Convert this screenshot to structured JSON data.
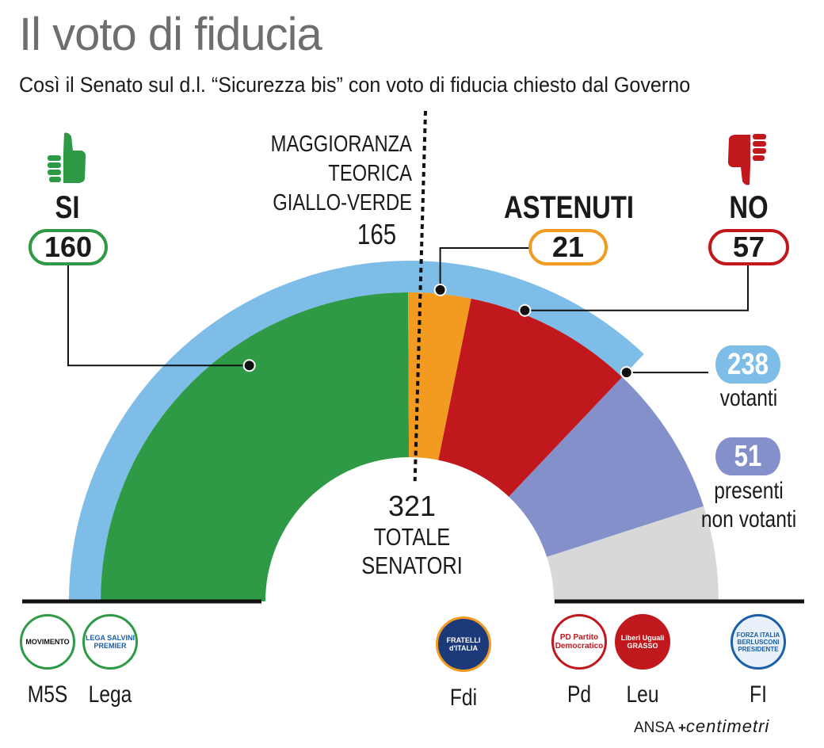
{
  "header": {
    "title": "Il voto di fiducia",
    "subtitle": "Così il Senato sul d.l. “Sicurezza bis” con voto di fiducia chiesto dal Governo"
  },
  "labels": {
    "si": "SI",
    "astenuti": "ASTENUTI",
    "no": "NO",
    "maj_line1": "MAGGIORANZA",
    "maj_line2": "TEORICA",
    "maj_line3": "GIALLO-VERDE",
    "maj_value": "165",
    "total_value": "321",
    "total_line1": "TOTALE",
    "total_line2": "SENATORI",
    "votanti_value": "238",
    "votanti_label": "votanti",
    "presenti_value": "51",
    "presenti_line1": "presenti",
    "presenti_line2": "non votanti"
  },
  "values": {
    "si": "160",
    "astenuti": "21",
    "no": "57"
  },
  "parties": [
    {
      "name": "M5S",
      "logo_text": "MOVIMENTO"
    },
    {
      "name": "Lega",
      "logo_text": "LEGA SALVINI PREMIER"
    },
    {
      "name": "Fdi",
      "logo_text": "FRATELLI d'ITALIA"
    },
    {
      "name": "Pd",
      "logo_text": "PD Partito Democratico"
    },
    {
      "name": "Leu",
      "logo_text": "Liberi Uguali GRASSO"
    },
    {
      "name": "FI",
      "logo_text": "FORZA ITALIA BERLUSCONI PRESIDENTE"
    }
  ],
  "footer": {
    "source": "ANSA",
    "brand": "centimetri"
  },
  "colors": {
    "si": "#2e9a45",
    "astenuti": "#f39a21",
    "no": "#c1181e",
    "presenti_non_votanti": "#8490c9",
    "assenti": "#d8d8d9",
    "votanti": "#7dbde8",
    "title": "#6d6e70"
  },
  "chart_data": {
    "type": "pie",
    "total": 321,
    "majority_threshold": 165,
    "segments": [
      {
        "value": 160,
        "color": "#2e9a45"
      },
      {
        "value": 21,
        "color": "#f39a21"
      },
      {
        "value": 57,
        "color": "#c1181e"
      },
      {
        "value": 51,
        "color": "#8490c9"
      },
      {
        "value": 32,
        "color": "#d8d8d9"
      }
    ],
    "votanti": 238
  }
}
